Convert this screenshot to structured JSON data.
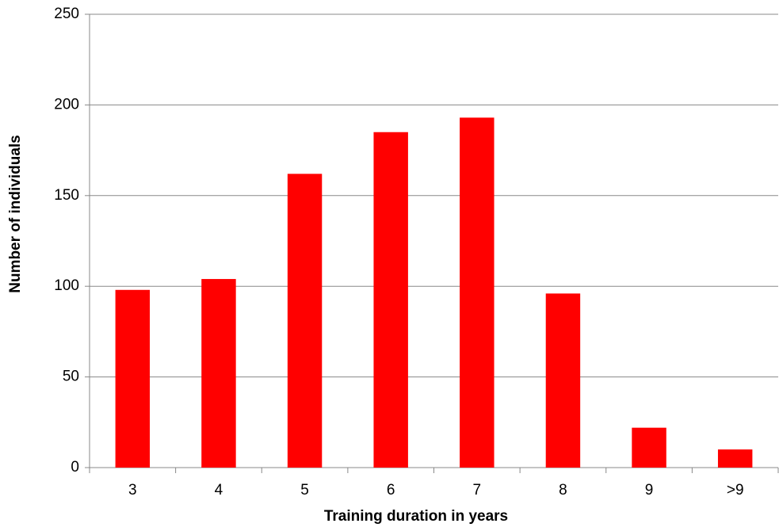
{
  "chart_data": {
    "type": "bar",
    "x_label": "Training duration in years",
    "y_label": "Number of individuals",
    "categories": [
      "3",
      "4",
      "5",
      "6",
      "7",
      "8",
      "9",
      ">9"
    ],
    "values": [
      98,
      104,
      162,
      185,
      193,
      96,
      22,
      10
    ],
    "color": "#ff0000",
    "ylim": [
      0,
      250
    ],
    "yticks": [
      0,
      50,
      100,
      150,
      200,
      250
    ],
    "grid": true
  }
}
